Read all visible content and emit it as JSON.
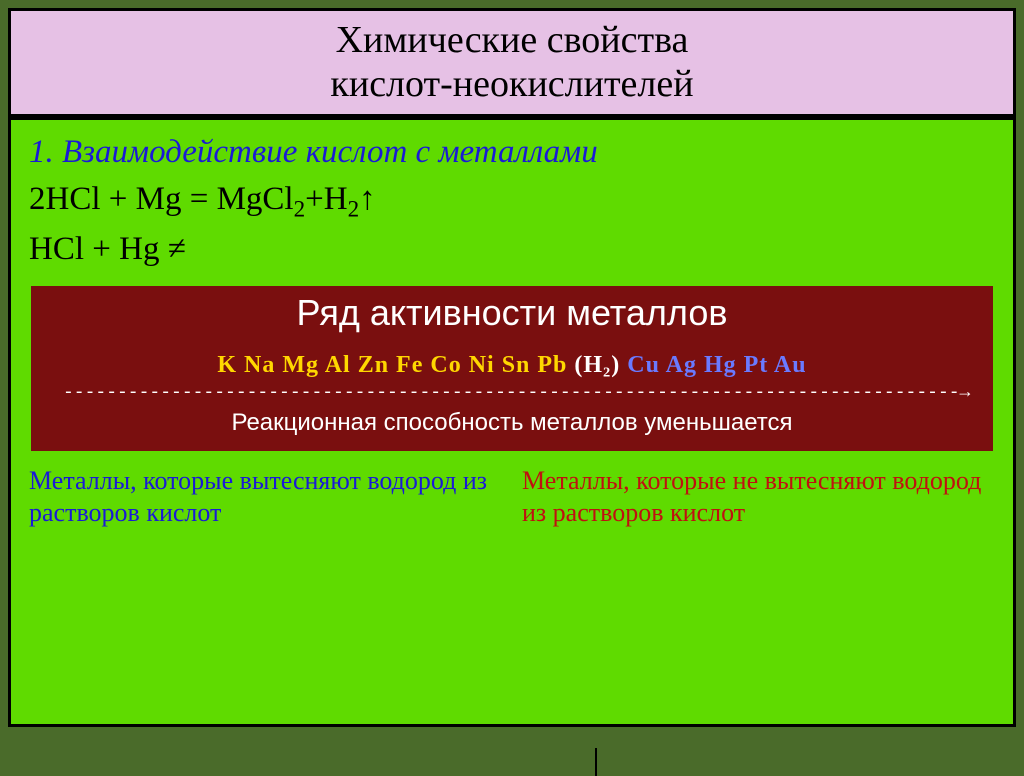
{
  "title": {
    "line1": "Химические свойства",
    "line2": "кислот-неокислителей"
  },
  "section_heading": "1. Взаимодействие кислот с металлами",
  "equations": {
    "eq1_left": "2HCl + Mg = MgCl",
    "eq1_sub": "2",
    "eq1_mid": "+H",
    "eq1_sub2": "2",
    "eq1_arrow": "↑",
    "eq2_left": "HCl + Hg ",
    "eq2_neq": "≠"
  },
  "activity": {
    "title": "Ряд активности металлов",
    "metals_left": "K Na Mg Al Zn Fe Co Ni Sn Pb ",
    "metals_h2": "(H₂) ",
    "metals_right": "Cu Ag Hg Pt Au",
    "dashes": "-----------------------------------------------------------------------------------→",
    "reactivity_text": "Реакционная способность металлов уменьшается"
  },
  "notes": {
    "left": "Металлы, которые вытесняют водород из растворов кислот",
    "right": "Металлы, которые не вытесняют водород из растворов кислот"
  },
  "colors": {
    "slide_bg": "#4a6b2a",
    "title_bg": "#e6c1e5",
    "content_bg": "#5fdb00",
    "activity_bg": "#7a0f0f",
    "blue_text": "#1a1ad6",
    "red_text": "#c01010",
    "metal_yellow": "#ffd700",
    "metal_blue": "#6a7aff"
  }
}
